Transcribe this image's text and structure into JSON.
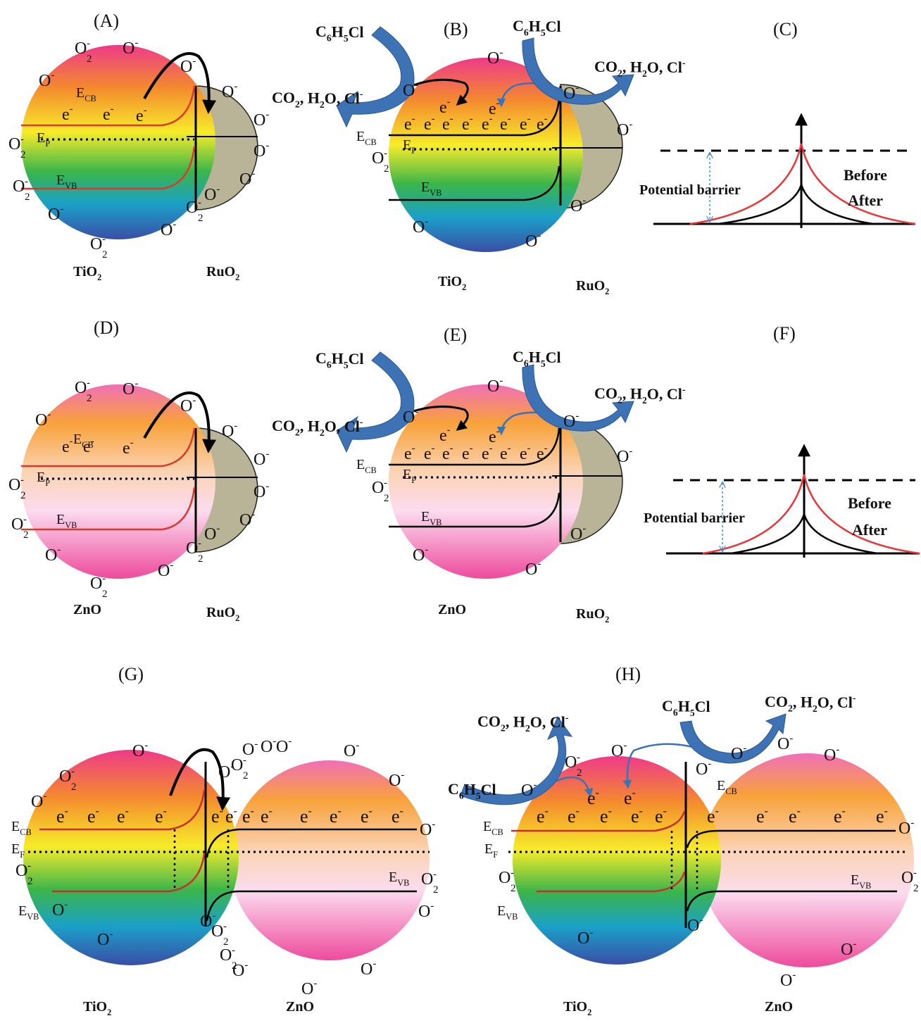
{
  "panel_labels": {
    "A": "(A)",
    "B": "(B)",
    "C": "(C)",
    "D": "(D)",
    "E": "(E)",
    "F": "(F)",
    "G": "(G)",
    "H": "(H)"
  },
  "materials": {
    "tio2": "TiO",
    "zno": "ZnO",
    "ruo2": "RuO",
    "sub2": "2"
  },
  "levels": {
    "E": "E",
    "cb": "CB",
    "vb": "VB",
    "p": "P",
    "f": "F"
  },
  "species": {
    "o": "O",
    "o2": "O",
    "minus": "-",
    "two": "2",
    "electron": "e"
  },
  "reaction": {
    "reactant": {
      "c": "C",
      "c_sub": "6",
      "h": "H",
      "h_sub": "5",
      "cl": "Cl"
    },
    "products": {
      "co": "CO",
      "co_sub": "2",
      "h2o": ", H",
      "h2o_sub": "2",
      "o_cl": "O, Cl",
      "minus": "-"
    }
  },
  "barrier": {
    "label": "Potential barrier",
    "before": "Before",
    "after": "After"
  },
  "colors": {
    "before_red": "#e8373a",
    "after_black": "#000000",
    "arrow_blue": "#3d72b4",
    "electron_red": "#e8373a",
    "electron_green": "#2eaa55",
    "ruo2_fill": "#b9b397",
    "barrier_blue": "#4d8fd1"
  }
}
